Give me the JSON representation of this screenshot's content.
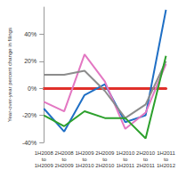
{
  "chart_data": {
    "type": "line",
    "y_label": "Year-over-year percent change in filings",
    "categories": [
      "1H2008 to 1H2009",
      "2H2008 to 2H2009",
      "1H2009 to 1H2010",
      "2H2009 to 2H2010",
      "1H2010 to 1H2011",
      "2H2010 to 2H2011",
      "1H2011 to 1H2012"
    ],
    "series": [
      {
        "color": "#1f6fc5",
        "values": [
          -15,
          -32,
          -5,
          3,
          -25,
          -20,
          58
        ]
      },
      {
        "color": "#e377c2",
        "values": [
          -10,
          -17,
          25,
          5,
          -30,
          -18,
          18
        ]
      },
      {
        "color": "#8c8c8c",
        "values": [
          10,
          10,
          13,
          -2,
          -22,
          -12,
          20
        ]
      },
      {
        "color": "#2ca02c",
        "values": [
          -20,
          -28,
          -17,
          -22,
          -22,
          -37,
          24
        ]
      }
    ],
    "ylim": [
      -40,
      60
    ],
    "yticks": [
      {
        "value": -40,
        "label": "-40%"
      },
      {
        "value": -20,
        "label": "-20%"
      },
      {
        "value": 0,
        "label": "0%"
      },
      {
        "value": 20,
        "label": "20%"
      },
      {
        "value": 40,
        "label": "40%"
      }
    ],
    "grid": false
  }
}
